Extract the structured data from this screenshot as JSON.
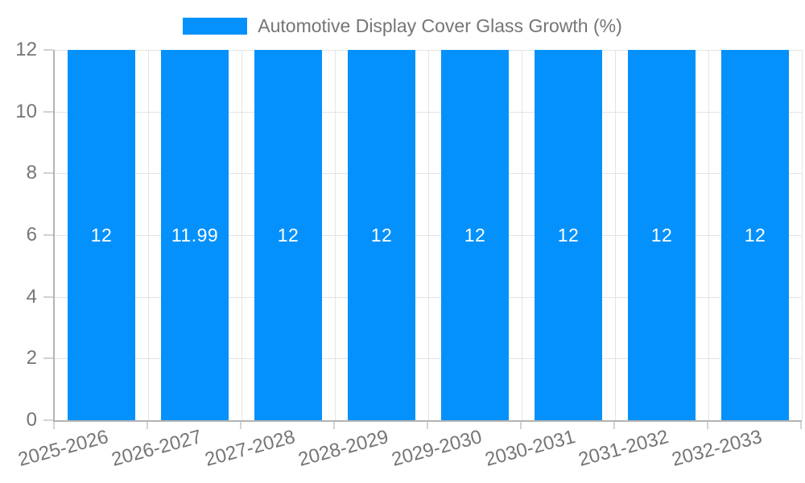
{
  "chart_data": {
    "type": "bar",
    "title": "Automotive Display Cover Glass Growth (%)",
    "categories": [
      "2025-2026",
      "2026-2027",
      "2027-2028",
      "2028-2029",
      "2029-2030",
      "2030-2031",
      "2031-2032",
      "2032-2033"
    ],
    "values": [
      12,
      11.99,
      12,
      12,
      12,
      12,
      12,
      12
    ],
    "bar_labels": [
      "12",
      "11.99",
      "12",
      "12",
      "12",
      "12",
      "12",
      "12"
    ],
    "xlabel": "",
    "ylabel": "",
    "ylim": [
      0,
      12
    ],
    "yticks": [
      0,
      2,
      4,
      6,
      8,
      10,
      12
    ],
    "grid": true,
    "legend": {
      "label": "Automotive Display Cover Glass Growth (%)",
      "position": "top"
    },
    "colors": {
      "bar": "#0591fb",
      "grid": "#e4e4e4",
      "axis": "#b3b3b3",
      "tick": "#d2d2d2",
      "text": "#757575",
      "bar_label": "#ffffff",
      "background": "#ffffff"
    }
  }
}
